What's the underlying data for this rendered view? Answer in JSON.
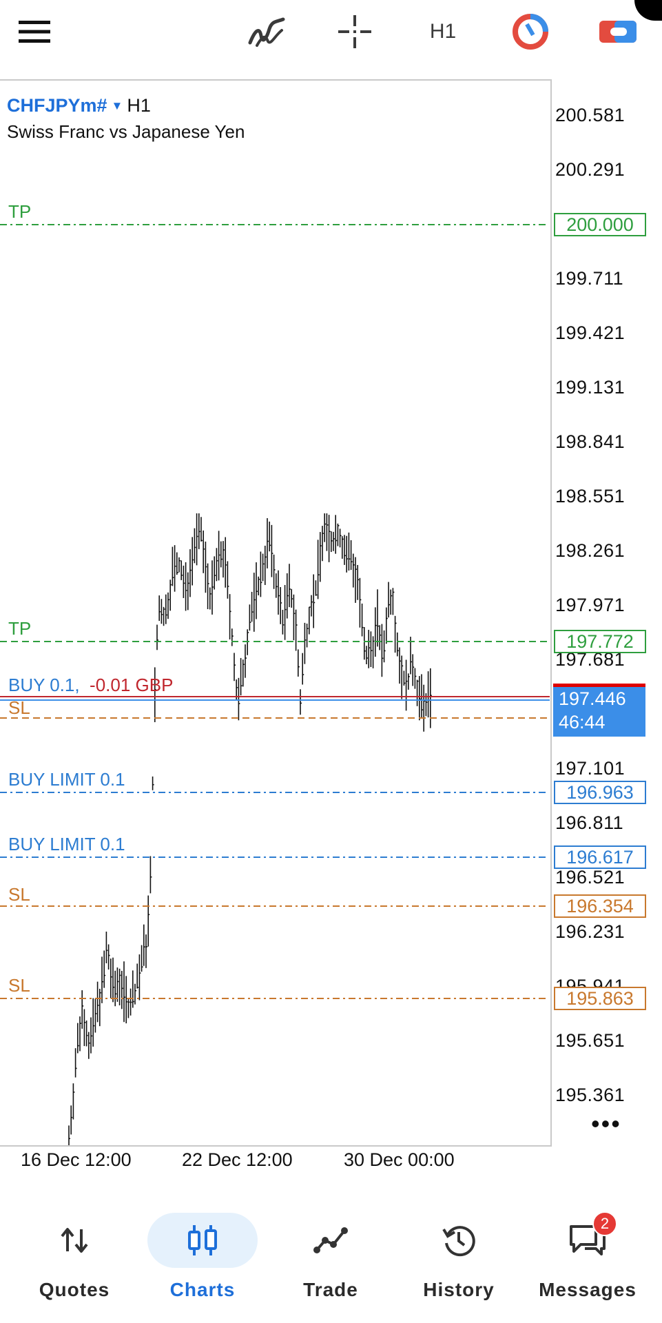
{
  "toolbar": {
    "menu_icon": "hamburger-menu-icon",
    "indicators_icon": "indicator-f-icon",
    "crosshair_icon": "crosshair-icon",
    "timeframe": "H1",
    "oneclick_icon": "one-click-trading-icon",
    "account_icon": "account-toggle-icon"
  },
  "chart": {
    "symbol": "CHFJPYm#",
    "timeframe": "H1",
    "description": "Swiss Franc vs Japanese Yen",
    "price_axis": [
      "200.581",
      "200.291",
      "199.711",
      "199.421",
      "199.131",
      "198.841",
      "198.551",
      "198.261",
      "197.971",
      "197.681",
      "197.101",
      "196.811",
      "196.521",
      "196.231",
      "195.941",
      "195.651",
      "195.361"
    ],
    "time_axis": [
      "16 Dec 12:00",
      "22 Dec 12:00",
      "30 Dec 00:00"
    ],
    "orders": {
      "tp1_label": "TP",
      "tp1_price": "200.000",
      "tp2_label": "TP",
      "tp2_price": "197.772",
      "position_label": "BUY 0.1,",
      "position_profit": "-0.01 GBP",
      "sl1_label": "SL",
      "buy_limit1_label": "BUY LIMIT 0.1",
      "buy_limit1_price": "196.963",
      "buy_limit2_label": "BUY LIMIT 0.1",
      "buy_limit2_price": "196.617",
      "sl2_label": "SL",
      "sl2_price": "196.354",
      "sl3_label": "SL",
      "sl3_price": "195.863"
    },
    "bid_price": "197.446",
    "bar_timer": "46:44",
    "more_label": "•••",
    "colors": {
      "tp": "#2e9e3e",
      "sl": "#c8782d",
      "pending": "#2c7cd1",
      "position": "#c0262d",
      "bid": "#3b8ee8",
      "ask": "#e00000",
      "candles": "#111111"
    }
  },
  "nav": {
    "quotes": "Quotes",
    "charts": "Charts",
    "trade": "Trade",
    "history": "History",
    "messages": "Messages",
    "messages_badge": "2",
    "active": "Charts"
  }
}
